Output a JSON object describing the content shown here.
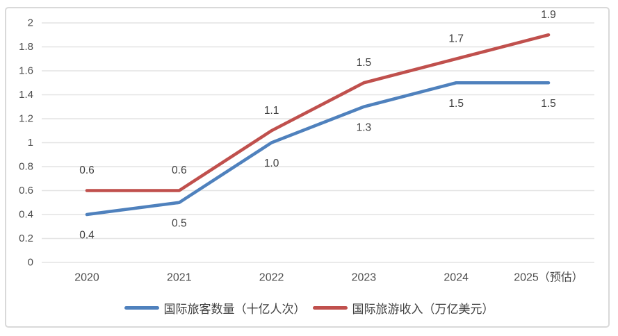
{
  "chart_data": {
    "type": "line",
    "title": "",
    "categories": [
      "2020",
      "2021",
      "2022",
      "2023",
      "2024",
      "2025（预估）"
    ],
    "series": [
      {
        "name": "国际旅客数量（十亿人次）",
        "color": "#4f81bd",
        "values": [
          0.4,
          0.5,
          1.0,
          1.3,
          1.5,
          1.5
        ],
        "labels": [
          "0.4",
          "0.5",
          "1.0",
          "1.3",
          "1.5",
          "1.5"
        ],
        "label_position": "below"
      },
      {
        "name": "国际旅游收入（万亿美元）",
        "color": "#c0504d",
        "values": [
          0.6,
          0.6,
          1.1,
          1.5,
          1.7,
          1.9
        ],
        "labels": [
          "0.6",
          "0.6",
          "1.1",
          "1.5",
          "1.7",
          "1.9"
        ],
        "label_position": "above"
      }
    ],
    "ylim": [
      0,
      2
    ],
    "ytick_step": 0.2,
    "ytick_labels": [
      "0",
      "0.2",
      "0.4",
      "0.6",
      "0.8",
      "1",
      "1.2",
      "1.4",
      "1.6",
      "1.8",
      "2"
    ],
    "grid": true,
    "legend_position": "bottom",
    "colors": {
      "gridline": "#e4e4e4",
      "data_label_text": "#404040",
      "axis_tick_text": "#4d4d4d",
      "card_border": "#d9d9d9"
    }
  }
}
